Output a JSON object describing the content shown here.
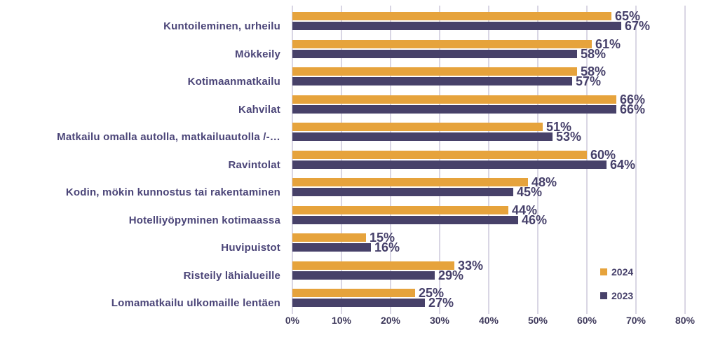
{
  "chart_data": {
    "type": "bar",
    "orientation": "horizontal",
    "title": "",
    "categories": [
      "Kuntoileminen, urheilu",
      "Mökkeily",
      "Kotimaanmatkailu",
      "Kahvilat",
      "Matkailu omalla autolla, matkailuautolla /-…",
      "Ravintolat",
      "Kodin, mökin kunnostus tai rakentaminen",
      "Hotelliyöpyminen kotimaassa",
      "Huvipuistot",
      "Risteily lähialueille",
      "Lomamatkailu ulkomaille lentäen"
    ],
    "series": [
      {
        "name": "2024",
        "color": "#e6a33c",
        "values": [
          65,
          61,
          58,
          66,
          51,
          60,
          48,
          44,
          15,
          33,
          25
        ]
      },
      {
        "name": "2023",
        "color": "#474169",
        "values": [
          67,
          58,
          57,
          66,
          53,
          64,
          45,
          46,
          16,
          29,
          27
        ]
      }
    ],
    "value_suffix": "%",
    "xlim": [
      0,
      80
    ],
    "x_ticks": [
      "0%",
      "10%",
      "20%",
      "30%",
      "40%",
      "50%",
      "60%",
      "70%",
      "80%"
    ],
    "grid": "vertical",
    "legend_position": "right-bottom"
  },
  "colors": {
    "background": "#ffffff",
    "gridline": "#d9d6e4",
    "category_label": "#4b4578",
    "value_label": "#46406a",
    "axis_label": "#3f3a5c"
  }
}
